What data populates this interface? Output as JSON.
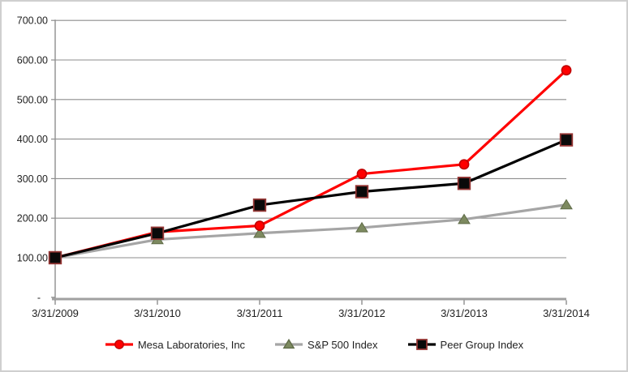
{
  "chart_data": {
    "type": "line",
    "title": "",
    "xlabel": "",
    "ylabel": "",
    "x_categories": [
      "3/31/2009",
      "3/31/2010",
      "3/31/2011",
      "3/31/2012",
      "3/31/2013",
      "3/31/2014"
    ],
    "y_axis": {
      "min": 0,
      "max": 700,
      "step": 100,
      "tick_labels": [
        "-",
        "100.00",
        "200.00",
        "300.00",
        "400.00",
        "500.00",
        "600.00",
        "700.00"
      ]
    },
    "grid": "horizontal",
    "legend_position": "bottom",
    "series": [
      {
        "name": "Mesa Laboratories, Inc",
        "marker": "circle",
        "line_color": "#ff0000",
        "marker_fill": "#ff0000",
        "marker_edge": "#c00000",
        "values": [
          100,
          165,
          181,
          312,
          336,
          574
        ]
      },
      {
        "name": "S&P 500 Index",
        "marker": "triangle",
        "line_color": "#a5a5a5",
        "marker_fill": "#7d8a60",
        "marker_edge": "#5f6b47",
        "values": [
          100,
          146,
          162,
          176,
          197,
          234
        ]
      },
      {
        "name": "Peer Group Index",
        "marker": "square",
        "line_color": "#000000",
        "marker_fill": "#0a0a0a",
        "marker_edge": "#963634",
        "values": [
          100,
          162,
          233,
          267,
          288,
          398
        ]
      }
    ],
    "colors": {
      "gridline": "#8e8e8e",
      "axis_line": "#a0a0a0",
      "tick": "#8e8e8e",
      "frame_border": "#cfcfcf",
      "text": "#1f1f1f"
    }
  }
}
